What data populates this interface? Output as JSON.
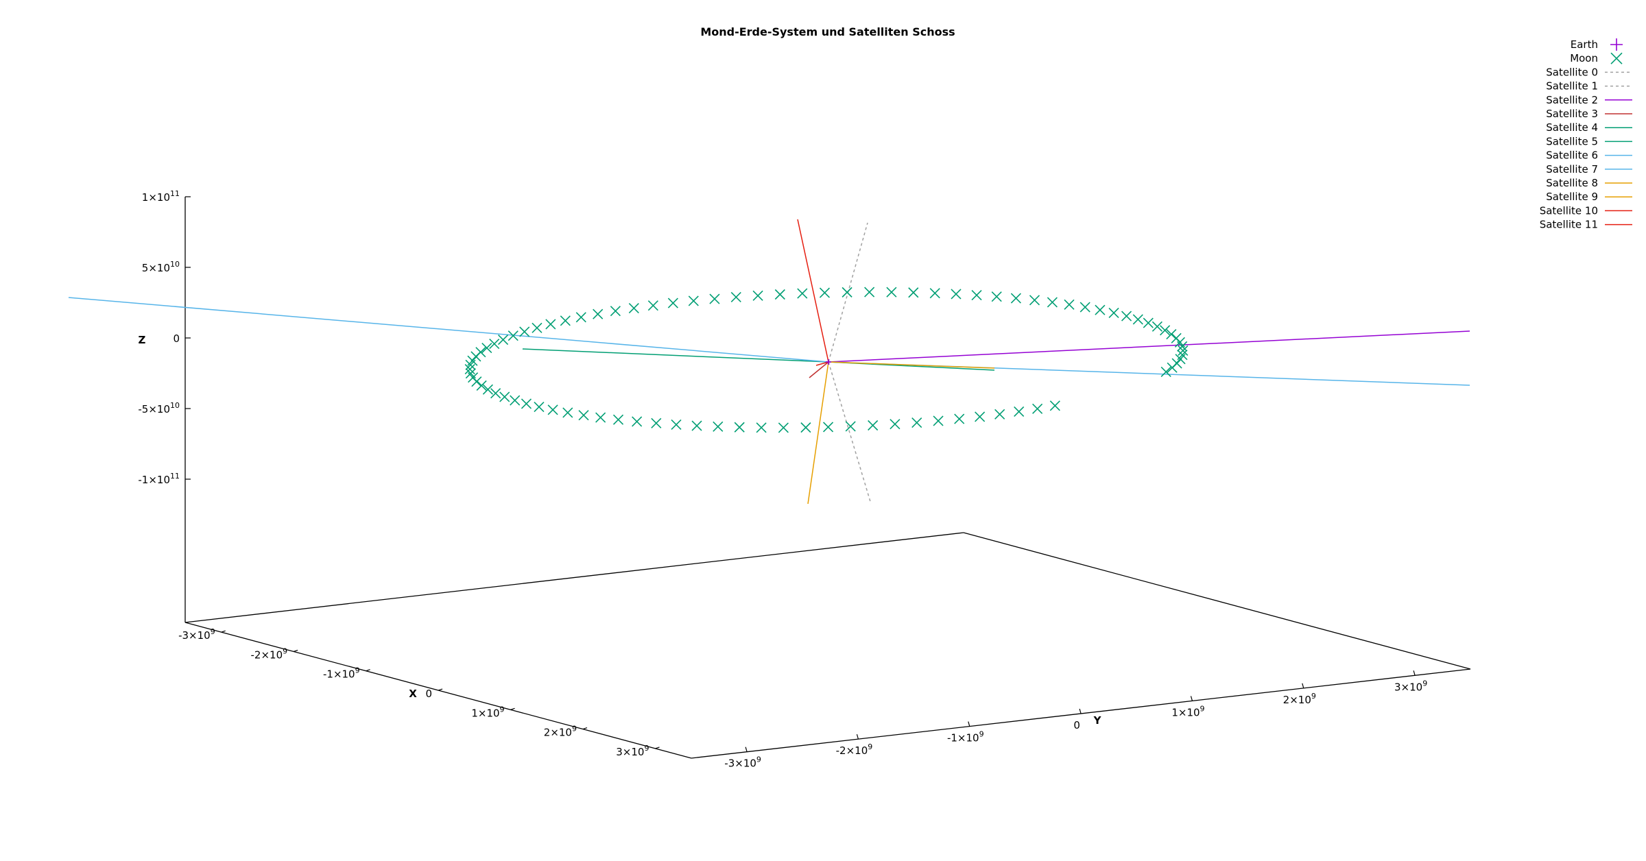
{
  "chart_data": {
    "type": "scatter",
    "title": "Mond-Erde-System und Satelliten Schoss",
    "axes": {
      "x": {
        "label": "X",
        "ticks": [
          "-3×10^9",
          "-2×10^9",
          "-1×10^9",
          "0",
          "1×10^9",
          "2×10^9",
          "3×10^9"
        ],
        "range": [
          -3500000000.0,
          3500000000.0
        ]
      },
      "y": {
        "label": "Y",
        "ticks": [
          "-3×10^9",
          "-2×10^9",
          "-1×10^9",
          "0",
          "1×10^9",
          "2×10^9",
          "3×10^9"
        ],
        "range": [
          -3500000000.0,
          3500000000.0
        ]
      },
      "z": {
        "label": "Z",
        "ticks": [
          "1×10^11",
          "5×10^10",
          "0",
          "-5×10^10",
          "-1×10^11"
        ],
        "range": [
          -100000000000.0,
          100000000000.0
        ]
      }
    },
    "grid": false,
    "legend_position": "top-right",
    "series": [
      {
        "name": "Earth",
        "style": "points",
        "marker": "plus",
        "color": "#9400d3"
      },
      {
        "name": "Moon",
        "style": "points",
        "marker": "x",
        "color": "#009e73",
        "orbit": {
          "center": [
            0,
            0,
            0
          ],
          "radius": 384000000.0,
          "points": 100,
          "visible_fraction": 0.92
        }
      },
      {
        "name": "Satellite 0",
        "style": "dashed",
        "color": "#a0a0a0"
      },
      {
        "name": "Satellite 1",
        "style": "dashed",
        "color": "#a0a0a0"
      },
      {
        "name": "Satellite 2",
        "style": "line",
        "color": "#9400d3"
      },
      {
        "name": "Satellite 3",
        "style": "line",
        "color": "#c03030"
      },
      {
        "name": "Satellite 4",
        "style": "line",
        "color": "#009e73"
      },
      {
        "name": "Satellite 5",
        "style": "line",
        "color": "#009e73"
      },
      {
        "name": "Satellite 6",
        "style": "line",
        "color": "#56b4e9"
      },
      {
        "name": "Satellite 7",
        "style": "line",
        "color": "#56b4e9"
      },
      {
        "name": "Satellite 8",
        "style": "line",
        "color": "#e69f00"
      },
      {
        "name": "Satellite 9",
        "style": "line",
        "color": "#e69f00"
      },
      {
        "name": "Satellite 10",
        "style": "line",
        "color": "#e51e10"
      },
      {
        "name": "Satellite 11",
        "style": "line",
        "color": "#e51e10"
      }
    ]
  }
}
